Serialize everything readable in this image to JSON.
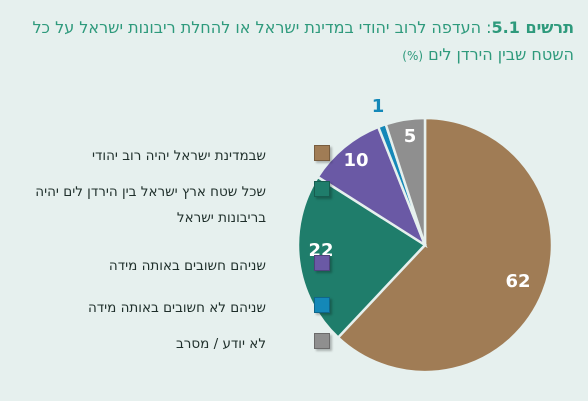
{
  "title": {
    "label": "תרשים 5.1",
    "text": ": העדפה לרוב יהודי במדינת ישראל או להחלת ריבונות ישראל על כל השטח שבין הירדן לים",
    "unit": "(%)"
  },
  "chart_data": {
    "type": "pie",
    "slices": [
      {
        "label": "שבמדינת ישראל יהיה רוב יהודי",
        "value": 62,
        "color": "#a07c55"
      },
      {
        "label": "שכל שטח ארץ ישראל בין הירדן לים יהיה בריבונות ישראל",
        "value": 22,
        "color": "#1f7d6b"
      },
      {
        "label": "שניהם חשובים באותה מידה",
        "value": 10,
        "color": "#6a59a5"
      },
      {
        "label": "שניהם לא חשובים באותה מידה",
        "value": 1,
        "color": "#1488b8"
      },
      {
        "label": "לא יודע / מסרב",
        "value": 5,
        "color": "#8f8f8f"
      }
    ],
    "value_labels": [
      "62",
      "22",
      "10",
      "1",
      "5"
    ],
    "legend_position": "left"
  }
}
